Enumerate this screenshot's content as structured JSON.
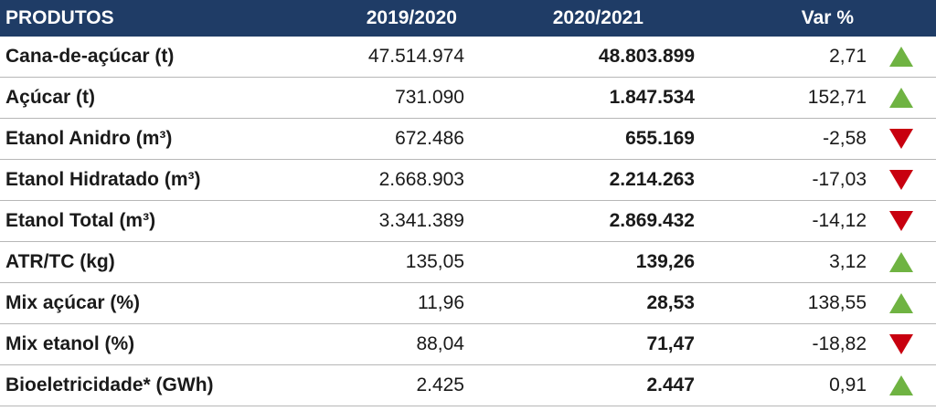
{
  "headers": {
    "product": "PRODUTOS",
    "year_a": "2019/2020",
    "year_b": "2020/2021",
    "variation": "Var %"
  },
  "colors": {
    "header_bg": "#1f3c66",
    "up": "#6fb342",
    "down": "#c8000f"
  },
  "rows": [
    {
      "product": "Cana-de-açúcar (t)",
      "a": "47.514.974",
      "b": "48.803.899",
      "var": "2,71",
      "trend": "up"
    },
    {
      "product": "Açúcar (t)",
      "a": "731.090",
      "b": "1.847.534",
      "var": "152,71",
      "trend": "up"
    },
    {
      "product": "Etanol Anidro (m³)",
      "a": "672.486",
      "b": "655.169",
      "var": "-2,58",
      "trend": "down"
    },
    {
      "product": "Etanol Hidratado (m³)",
      "a": "2.668.903",
      "b": "2.214.263",
      "var": "-17,03",
      "trend": "down"
    },
    {
      "product": "Etanol Total (m³)",
      "a": "3.341.389",
      "b": "2.869.432",
      "var": "-14,12",
      "trend": "down"
    },
    {
      "product": "ATR/TC (kg)",
      "a": "135,05",
      "b": "139,26",
      "var": "3,12",
      "trend": "up"
    },
    {
      "product": "Mix açúcar (%)",
      "a": "11,96",
      "b": "28,53",
      "var": "138,55",
      "trend": "up"
    },
    {
      "product": "Mix etanol (%)",
      "a": "88,04",
      "b": "71,47",
      "var": "-18,82",
      "trend": "down"
    },
    {
      "product": "Bioeletricidade* (GWh)",
      "a": "2.425",
      "b": "2.447",
      "var": "0,91",
      "trend": "up"
    }
  ]
}
